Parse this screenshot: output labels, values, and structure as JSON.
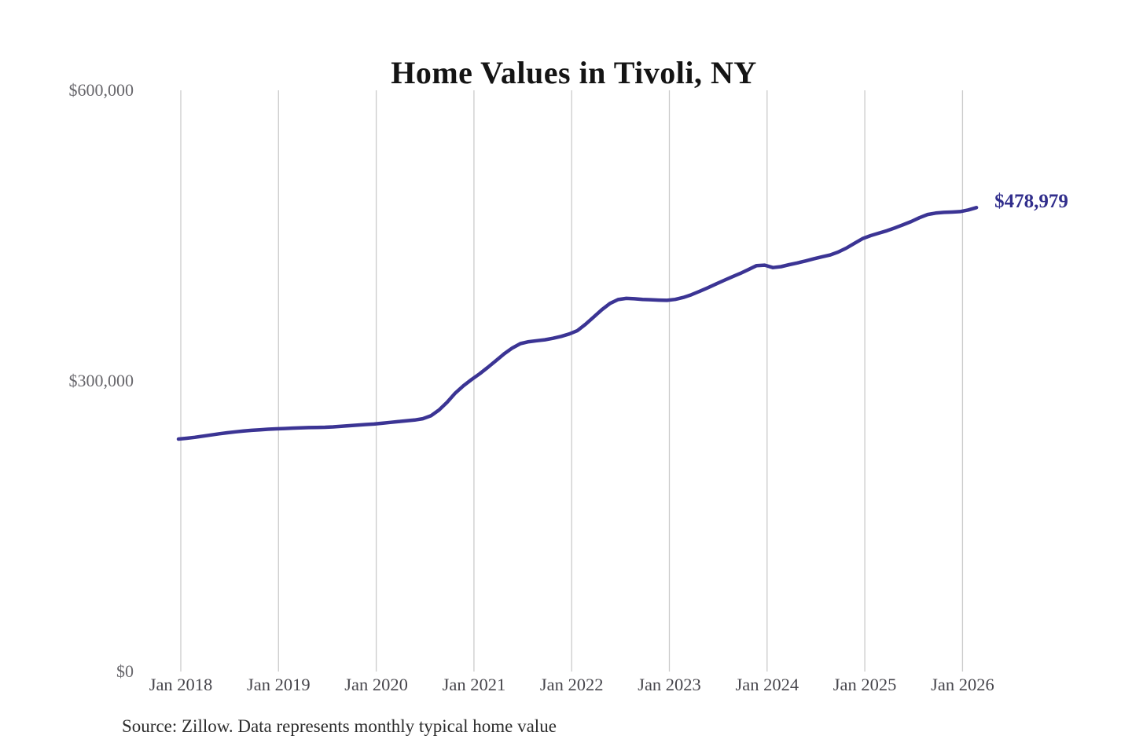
{
  "title": "Home Values in Tivoli, NY",
  "source_note": "Source: Zillow. Data represents monthly typical home value",
  "colors": {
    "line": "#3b3494",
    "annotation_text": "#312e8c",
    "gridline": "#cbcbcb",
    "y_tick_text": "#67666b",
    "x_tick_text": "#47464c",
    "title_text": "#141414",
    "source_text": "#2d2d2d",
    "background": "#ffffff"
  },
  "chart_data": {
    "type": "line",
    "title": "Home Values in Tivoli, NY",
    "xlabel": "",
    "ylabel": "",
    "ylim": [
      0,
      600000
    ],
    "grid": "vertical-only",
    "legend": "none",
    "x_tick_labels": [
      "Jan 2018",
      "Jan 2019",
      "Jan 2020",
      "Jan 2021",
      "Jan 2022",
      "Jan 2023",
      "Jan 2024",
      "Jan 2025",
      "Jan 2026"
    ],
    "y_ticks": [
      {
        "label": "$0",
        "value": 0
      },
      {
        "label": "$300,000",
        "value": 300000
      },
      {
        "label": "$600,000",
        "value": 600000
      }
    ],
    "annotation": {
      "text": "$478,979",
      "at": "last-point",
      "value": 478979
    },
    "series": [
      {
        "name": "Monthly typical home value",
        "start_month": "2018-01",
        "end_month": "2026-03",
        "interval": "monthly",
        "values": [
          240000,
          240800,
          241800,
          243000,
          244200,
          245400,
          246500,
          247500,
          248300,
          249000,
          249600,
          250100,
          250500,
          250900,
          251300,
          251600,
          251800,
          252000,
          252200,
          252600,
          253200,
          253800,
          254400,
          255000,
          255500,
          256300,
          257200,
          258000,
          258800,
          259600,
          261000,
          264000,
          270000,
          278000,
          287500,
          295000,
          301500,
          307500,
          314000,
          321000,
          328000,
          334000,
          338500,
          340500,
          341500,
          342500,
          344000,
          346000,
          348500,
          352000,
          358500,
          366000,
          373500,
          380000,
          384000,
          385200,
          384800,
          384200,
          383800,
          383400,
          383200,
          384200,
          386200,
          389000,
          392500,
          396200,
          400000,
          403800,
          407500,
          411000,
          415000,
          419000,
          419500,
          417000,
          418000,
          420000,
          421800,
          423800,
          426000,
          428000,
          430000,
          433000,
          437000,
          442000,
          446800,
          450000,
          452500,
          455000,
          458000,
          461300,
          464600,
          468500,
          471800,
          473300,
          474000,
          474300,
          474800,
          476500,
          478979
        ]
      }
    ]
  }
}
